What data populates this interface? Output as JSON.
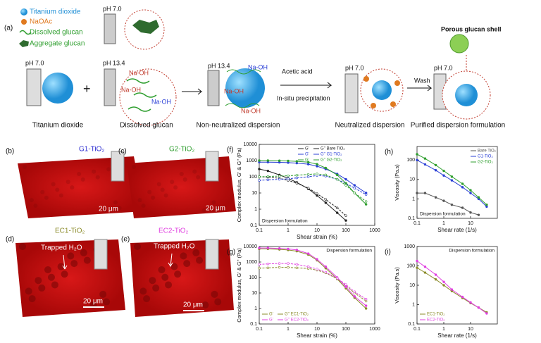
{
  "schematic": {
    "label": "(a)",
    "legend": [
      "Titanium dioxide",
      "NaOAc",
      "Dissolved glucan",
      "Aggregate glucan"
    ],
    "ph_labels": [
      "pH 7.0",
      "pH 7.0",
      "pH 13.4",
      "pH 13.4",
      "pH 7.0",
      "pH 7.0"
    ],
    "naoh_labels": [
      "Na-OH",
      "Na-OH",
      "Na-OH",
      "Na-OH",
      "Na-OH",
      "Na-OH"
    ],
    "plus": "+",
    "arrow_labels": [
      "Acetic acid",
      "In-situ precipitation",
      "Wash"
    ],
    "shell": "Porous glucan shell",
    "steps": [
      "Titanium dioxide",
      "Dissolved glucan",
      "Non-neutralized dispersion",
      "Neutralized dispersion",
      "Purified dispersion formulation"
    ]
  },
  "images": [
    {
      "label": "(b)",
      "title": "G1-TiO₂",
      "scale": "20 μm",
      "color": "#2a2ad0"
    },
    {
      "label": "(c)",
      "title": "G2-TiO₂",
      "scale": "20 μm",
      "color": "#2e9e2e"
    },
    {
      "label": "(d)",
      "title": "EC1-TiO₂",
      "scale": "20 μm",
      "annotation": "Trapped H₂O",
      "color": "#8b8b2a"
    },
    {
      "label": "(e)",
      "title": "EC2-TiO₂",
      "scale": "20 μm",
      "annotation": "Trapped H₂O",
      "color": "#e040e0"
    }
  ],
  "chart_data": [
    {
      "type": "line",
      "panel_label": "(f)",
      "xlabel": "Shear strain (%)",
      "ylabel": "Complex modulus, G' & G'' (Pa)",
      "annotation": "Dispersion formulation",
      "legend": "upper right",
      "log_x": true,
      "log_y": true,
      "xlim": [
        0.1,
        1000
      ],
      "xticks": [
        0.1,
        1,
        10,
        100,
        1000
      ],
      "ylim": [
        0.1,
        10000
      ],
      "yticks": [
        0.1,
        1,
        10,
        100,
        1000,
        10000
      ],
      "x": [
        0.1,
        0.2,
        0.5,
        1,
        2,
        5,
        10,
        20,
        50,
        100,
        200,
        500
      ],
      "series": [
        {
          "name": "G'",
          "color": "#222222",
          "values": [
            300,
            230,
            130,
            80,
            45,
            18,
            7,
            2.5,
            0.6,
            0.2,
            null,
            null
          ]
        },
        {
          "name": "G'' Bare TiO₂",
          "color": "#222222",
          "values": [
            100,
            95,
            80,
            60,
            40,
            20,
            9,
            4,
            1.2,
            0.4,
            null,
            null
          ]
        },
        {
          "name": "G'",
          "color": "#2a3fd6",
          "values": [
            800,
            800,
            780,
            750,
            700,
            600,
            450,
            300,
            150,
            70,
            30,
            10
          ]
        },
        {
          "name": "G'' G1-TiO₂",
          "color": "#2a3fd6",
          "values": [
            60,
            65,
            70,
            75,
            85,
            100,
            120,
            110,
            70,
            40,
            20,
            8
          ]
        },
        {
          "name": "G'",
          "color": "#2e9e2e",
          "values": [
            1000,
            1000,
            980,
            950,
            900,
            800,
            600,
            350,
            130,
            40,
            10,
            2
          ]
        },
        {
          "name": "G'' G2-TiO₂",
          "color": "#2e9e2e",
          "values": [
            100,
            105,
            110,
            115,
            125,
            140,
            150,
            130,
            70,
            30,
            10,
            3
          ]
        }
      ]
    },
    {
      "type": "line",
      "panel_label": "(h)",
      "xlabel": "Shear rate (1/s)",
      "ylabel": "Viscosity (Pa.s)",
      "annotation": "Dispersion formulation",
      "legend": "upper right",
      "log_x": true,
      "log_y": true,
      "xlim": [
        0.1,
        100
      ],
      "xticks": [
        0.1,
        1,
        10
      ],
      "ylim": [
        0.1,
        500
      ],
      "yticks": [
        0.1,
        1,
        10,
        100
      ],
      "x": [
        0.1,
        0.2,
        0.5,
        1,
        2,
        5,
        10,
        20,
        40
      ],
      "series": [
        {
          "name": "Bare TiO₂",
          "color": "#555555",
          "values": [
            2,
            2,
            1.2,
            0.8,
            0.5,
            0.35,
            0.2,
            0.15,
            null
          ]
        },
        {
          "name": "G1-TiO₂",
          "color": "#2a3fd6",
          "values": [
            100,
            60,
            30,
            16,
            9,
            4,
            2,
            1,
            0.4
          ]
        },
        {
          "name": "G2-TiO₂",
          "color": "#2e9e2e",
          "values": [
            200,
            120,
            55,
            28,
            14,
            6,
            2.8,
            1.2,
            0.5
          ]
        }
      ]
    },
    {
      "type": "line",
      "panel_label": "(g)",
      "xlabel": "Shear strain (%)",
      "ylabel": "Complex modulus, G' & G'' (Pa)",
      "annotation": "Dispersion formulation",
      "legend": "lower left",
      "log_x": true,
      "log_y": true,
      "xlim": [
        0.1,
        1000
      ],
      "xticks": [
        0.1,
        1,
        10,
        100,
        1000
      ],
      "ylim": [
        0.1,
        10000
      ],
      "yticks": [
        0.1,
        1,
        10,
        100,
        1000,
        10000
      ],
      "x": [
        0.1,
        0.2,
        0.5,
        1,
        2,
        5,
        10,
        20,
        50,
        100,
        200,
        500
      ],
      "series": [
        {
          "name": "G'",
          "color": "#8b8b2a",
          "values": [
            7000,
            7000,
            6500,
            6000,
            5000,
            3000,
            1300,
            400,
            80,
            20,
            5,
            1
          ]
        },
        {
          "name": "G'' EC1-TiO₂",
          "color": "#8b8b2a",
          "values": [
            400,
            420,
            450,
            450,
            420,
            380,
            300,
            200,
            80,
            30,
            10,
            3
          ]
        },
        {
          "name": "G'",
          "color": "#e040e0",
          "values": [
            8000,
            8000,
            7500,
            7000,
            6000,
            3500,
            1500,
            500,
            100,
            25,
            6,
            1.5
          ]
        },
        {
          "name": "G'' EC2-TiO₂",
          "color": "#e040e0",
          "values": [
            700,
            750,
            800,
            800,
            700,
            500,
            350,
            220,
            90,
            35,
            12,
            4
          ]
        }
      ]
    },
    {
      "type": "line",
      "panel_label": "(i)",
      "xlabel": "Shear rate (1/s)",
      "ylabel": "Viscosity (Pa.s)",
      "annotation": "Dispersion formulation",
      "legend": "lower left",
      "log_x": true,
      "log_y": true,
      "xlim": [
        0.1,
        100
      ],
      "xticks": [
        0.1,
        1,
        10
      ],
      "ylim": [
        0.1,
        1000
      ],
      "yticks": [
        0.1,
        1,
        10,
        100,
        1000
      ],
      "x": [
        0.1,
        0.2,
        0.5,
        1,
        2,
        5,
        10,
        20,
        40
      ],
      "series": [
        {
          "name": "EC1-TiO₂",
          "color": "#8b8b2a",
          "values": [
            80,
            45,
            20,
            10,
            5,
            2.2,
            1.2,
            0.7,
            0.4
          ]
        },
        {
          "name": "EC2-TiO₂",
          "color": "#e040e0",
          "values": [
            180,
            90,
            35,
            15,
            6,
            2.5,
            1.3,
            0.7,
            0.35
          ]
        }
      ]
    }
  ]
}
